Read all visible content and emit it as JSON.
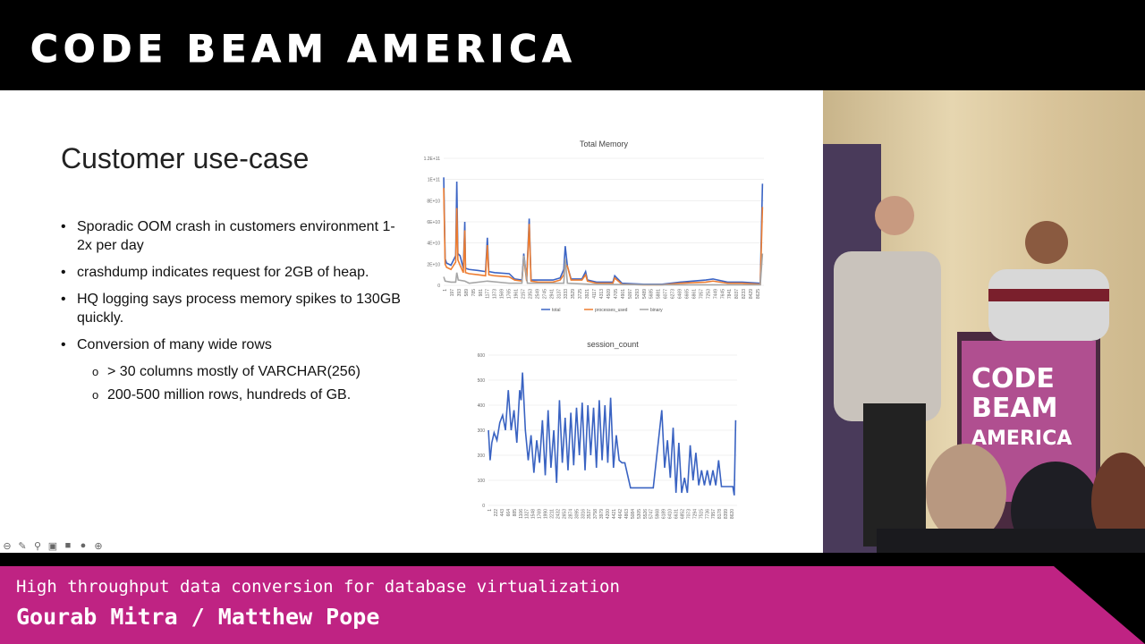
{
  "event_logo": "CODE BEAM AMERICA",
  "slide": {
    "title": "Customer use-case",
    "bullets": [
      "Sporadic OOM crash in customers environment 1-2x per day",
      "crashdump indicates request for 2GB of heap.",
      "HQ logging says process memory spikes to 130GB quickly.",
      "Conversion of many wide rows"
    ],
    "sub_bullets": [
      "> 30 columns mostly of VARCHAR(256)",
      "200-500 million rows, hundreds of GB."
    ]
  },
  "controls": [
    {
      "icon": "prev-icon"
    },
    {
      "icon": "pen-icon"
    },
    {
      "icon": "zoom-icon"
    },
    {
      "icon": "captions-icon"
    },
    {
      "icon": "camera-icon"
    },
    {
      "icon": "more-icon"
    },
    {
      "icon": "next-icon"
    }
  ],
  "chart_data": [
    {
      "type": "line",
      "title": "Total Memory",
      "ylim": [
        0,
        120000000000.0
      ],
      "yticks": [
        "0",
        "2E+10",
        "4E+10",
        "6E+10",
        "8E+10",
        "1E+11",
        "1.2E+11"
      ],
      "xticks": [
        "1",
        "197",
        "393",
        "589",
        "785",
        "981",
        "1177",
        "1373",
        "1569",
        "1765",
        "1961",
        "2157",
        "2353",
        "2549",
        "2745",
        "2941",
        "3137",
        "3333",
        "3529",
        "3725",
        "3921",
        "4117",
        "4313",
        "4509",
        "4705",
        "4901",
        "5097",
        "5293",
        "5489",
        "5685",
        "5881",
        "6077",
        "6273",
        "6469",
        "6665",
        "6861",
        "7057",
        "7253",
        "7449",
        "7645",
        "7841",
        "8037",
        "8233",
        "8429",
        "8625"
      ],
      "xmax": 8800,
      "legend": [
        "total",
        "processes_used",
        "binary"
      ],
      "legend_position": "bottom",
      "series": [
        {
          "name": "total",
          "color": "#3b64c4",
          "x": [
            1,
            40,
            80,
            200,
            330,
            360,
            390,
            450,
            540,
            580,
            600,
            700,
            950,
            1150,
            1200,
            1240,
            1400,
            1800,
            1950,
            2150,
            2200,
            2280,
            2350,
            2400,
            2600,
            3000,
            3200,
            3300,
            3340,
            3400,
            3500,
            3800,
            3900,
            3950,
            4200,
            4650,
            4700,
            4900,
            5500,
            6000,
            6500,
            7200,
            7400,
            7800,
            8200,
            8700,
            8760
          ],
          "y": [
            102000000000.0,
            25000000000.0,
            21000000000.0,
            19000000000.0,
            28000000000.0,
            98000000000.0,
            30000000000.0,
            28000000000.0,
            16000000000.0,
            60000000000.0,
            16000000000.0,
            15000000000.0,
            14000000000.0,
            13000000000.0,
            45000000000.0,
            13000000000.0,
            12000000000.0,
            11000000000.0,
            6000000000.0,
            5000000000.0,
            30000000000.0,
            6000000000.0,
            63000000000.0,
            5000000000.0,
            5000000000.0,
            5000000000.0,
            7000000000.0,
            15000000000.0,
            37000000000.0,
            18000000000.0,
            6000000000.0,
            6000000000.0,
            13000000000.0,
            5000000000.0,
            3000000000.0,
            3000000000.0,
            9000000000.0,
            2000000000.0,
            1000000000.0,
            1000000000.0,
            3000000000.0,
            5000000000.0,
            6000000000.0,
            3000000000.0,
            3000000000.0,
            2000000000.0,
            96000000000.0
          ]
        },
        {
          "name": "processes_used",
          "color": "#ed7d31",
          "x": [
            1,
            40,
            80,
            200,
            330,
            360,
            390,
            450,
            540,
            580,
            600,
            700,
            950,
            1150,
            1200,
            1240,
            1400,
            1800,
            1950,
            2150,
            2200,
            2280,
            2350,
            2400,
            2600,
            3000,
            3200,
            3300,
            3340,
            3400,
            3500,
            3800,
            3900,
            3950,
            4200,
            4650,
            4700,
            4900,
            5500,
            6000,
            6500,
            7200,
            7400,
            7800,
            8200,
            8700,
            8760
          ],
          "y": [
            92000000000.0,
            20000000000.0,
            17000000000.0,
            15000000000.0,
            22000000000.0,
            73000000000.0,
            24000000000.0,
            19000000000.0,
            12000000000.0,
            52000000000.0,
            12000000000.0,
            11000000000.0,
            10000000000.0,
            9000000000.0,
            38000000000.0,
            10000000000.0,
            9000000000.0,
            8000000000.0,
            5000000000.0,
            4000000000.0,
            26000000000.0,
            4000000000.0,
            58000000000.0,
            4000000000.0,
            3000000000.0,
            3000000000.0,
            5000000000.0,
            10000000000.0,
            20000000000.0,
            18000000000.0,
            5000000000.0,
            5000000000.0,
            10000000000.0,
            4000000000.0,
            2000000000.0,
            2000000000.0,
            7000000000.0,
            1000000000.0,
            500000000.0,
            500000000.0,
            2000000000.0,
            3000000000.0,
            4000000000.0,
            2000000000.0,
            2000000000.0,
            1000000000.0,
            74000000000.0
          ]
        },
        {
          "name": "binary",
          "color": "#a5a5a5",
          "x": [
            1,
            40,
            200,
            330,
            360,
            400,
            580,
            700,
            1200,
            1800,
            2150,
            2200,
            2300,
            3300,
            3340,
            3400,
            4000,
            6000,
            8700,
            8760
          ],
          "y": [
            8000000000.0,
            4000000000.0,
            3000000000.0,
            3000000000.0,
            12000000000.0,
            5000000000.0,
            4000000000.0,
            2000000000.0,
            4000000000.0,
            2000000000.0,
            2000000000.0,
            28000000000.0,
            2000000000.0,
            2000000000.0,
            25000000000.0,
            2000000000.0,
            1000000000.0,
            500000000.0,
            500000000.0,
            30000000000.0
          ]
        }
      ]
    },
    {
      "type": "line",
      "title": "session_count",
      "ylim": [
        0,
        600
      ],
      "yticks": [
        "0",
        "100",
        "200",
        "300",
        "400",
        "500",
        "600"
      ],
      "xticks": [
        "1",
        "222",
        "443",
        "664",
        "885",
        "1106",
        "1327",
        "1548",
        "1769",
        "1990",
        "2211",
        "2432",
        "2653",
        "2874",
        "3095",
        "3316",
        "3537",
        "3758",
        "3979",
        "4200",
        "4421",
        "4642",
        "4863",
        "5084",
        "5305",
        "5526",
        "5747",
        "5968",
        "6189",
        "6410",
        "6631",
        "6852",
        "7073",
        "7294",
        "7515",
        "7736",
        "7957",
        "8178",
        "8399",
        "8620"
      ],
      "xmax": 8750,
      "series": [
        {
          "name": "session_count",
          "color": "#3a63c2",
          "x": [
            1,
            60,
            120,
            200,
            300,
            400,
            500,
            600,
            700,
            800,
            900,
            1000,
            1100,
            1150,
            1200,
            1300,
            1400,
            1500,
            1600,
            1700,
            1800,
            1900,
            2000,
            2100,
            2200,
            2300,
            2400,
            2500,
            2600,
            2700,
            2800,
            2900,
            3000,
            3100,
            3200,
            3300,
            3400,
            3500,
            3600,
            3700,
            3800,
            3900,
            4000,
            4100,
            4200,
            4300,
            4400,
            4500,
            4600,
            4700,
            4800,
            5000,
            5300,
            5500,
            5800,
            6100,
            6200,
            6300,
            6400,
            6500,
            6600,
            6700,
            6800,
            6900,
            7000,
            7100,
            7200,
            7300,
            7400,
            7500,
            7600,
            7700,
            7800,
            7900,
            8000,
            8100,
            8200,
            8400,
            8600,
            8650,
            8700
          ],
          "y": [
            300,
            180,
            250,
            290,
            260,
            330,
            360,
            300,
            460,
            300,
            380,
            250,
            460,
            420,
            530,
            300,
            180,
            280,
            130,
            260,
            170,
            340,
            120,
            380,
            150,
            300,
            90,
            420,
            170,
            350,
            140,
            370,
            160,
            390,
            200,
            410,
            140,
            400,
            200,
            390,
            150,
            420,
            180,
            400,
            170,
            430,
            150,
            280,
            180,
            170,
            170,
            70,
            70,
            70,
            70,
            380,
            150,
            260,
            110,
            310,
            50,
            250,
            50,
            110,
            50,
            240,
            100,
            210,
            80,
            140,
            80,
            140,
            80,
            140,
            80,
            180,
            75,
            75,
            75,
            40,
            340
          ]
        }
      ]
    }
  ],
  "lower_third": {
    "talk_title": "High throughput data conversion for database virtualization",
    "speakers": "Gourab Mitra / Matthew Pope",
    "accent": "#bf2383"
  }
}
